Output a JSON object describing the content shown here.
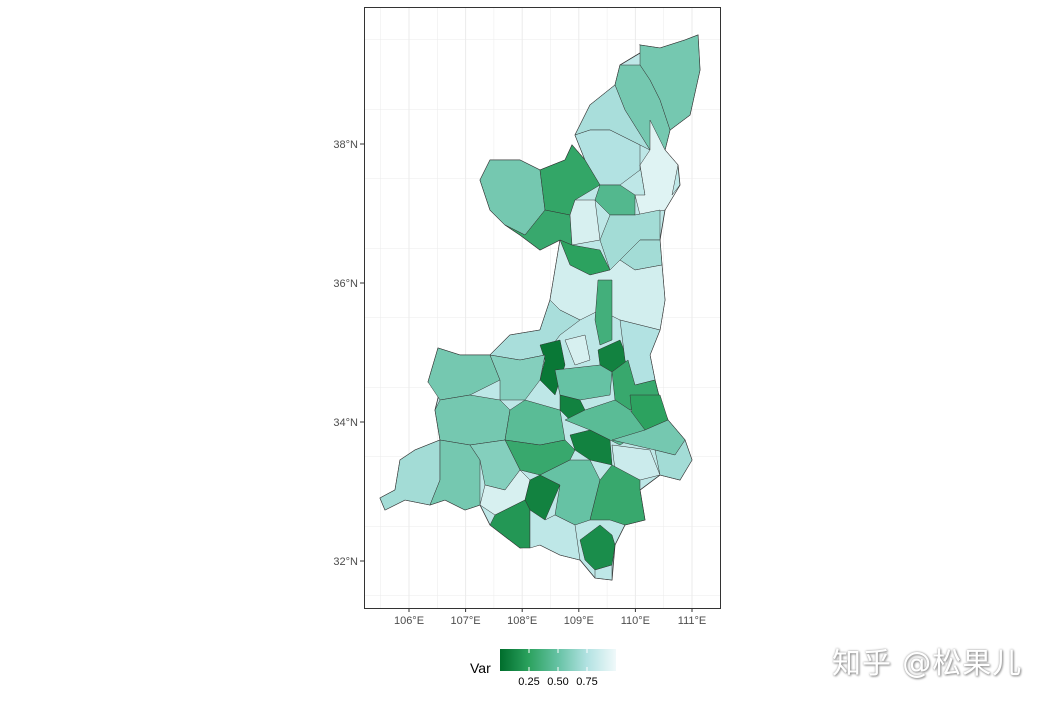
{
  "chart_data": {
    "type": "choropleth",
    "x_axis": {
      "ticks": [
        "106°E",
        "107°E",
        "108°E",
        "109°E",
        "110°E",
        "111°E"
      ],
      "values": [
        106,
        107,
        108,
        109,
        110,
        111
      ],
      "range": [
        105.5,
        111.7
      ]
    },
    "y_axis": {
      "ticks": [
        "32°N",
        "34°N",
        "36°N",
        "38°N"
      ],
      "values": [
        32,
        34,
        36,
        38
      ],
      "range": [
        31.3,
        39.9
      ]
    },
    "grid": true,
    "legend": {
      "title": "Var",
      "ticks": [
        "0.25",
        "0.50",
        "0.75"
      ],
      "tick_values": [
        0.25,
        0.5,
        0.75
      ],
      "range": [
        0,
        1
      ],
      "placement": "bottom"
    },
    "color_scale": [
      "#006d2c",
      "#2ca25f",
      "#66c2a4",
      "#b2e2e2",
      "#f0f9fa"
    ],
    "background_value": 0.8,
    "region_values": [
      0.55,
      0.55,
      0.72,
      0.75,
      0.0,
      0.93,
      0.55,
      0.28,
      0.3,
      0.25,
      0.9,
      0.42,
      0.7,
      0.7,
      0.88,
      0.35,
      0.72,
      0.05,
      0.9,
      0.1,
      0.75,
      0.55,
      0.6,
      0.5,
      0.3,
      0.25,
      0.1,
      0.55,
      0.45,
      0.45,
      0.1,
      0.55,
      0.85,
      0.7,
      0.3,
      0.7,
      0.55,
      0.6,
      0.9,
      0.1,
      0.5,
      0.3,
      0.2,
      0.8,
      0.15,
      0.8
    ]
  },
  "watermark": "知乎 @松果儿"
}
